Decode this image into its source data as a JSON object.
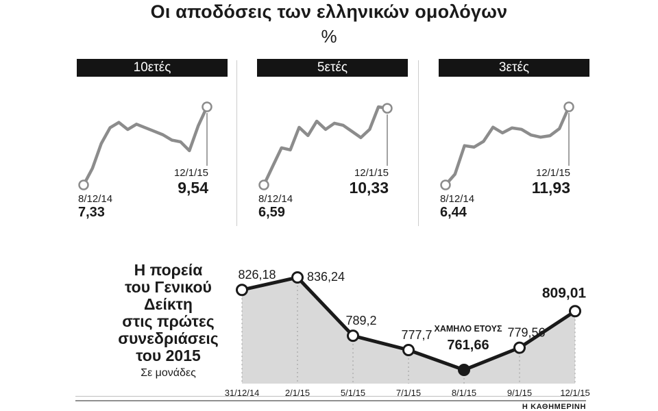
{
  "title": "Οι αποδόσεις των ελληνικών ομολόγων",
  "subtitle": "%",
  "source": "Η ΚΑΘΗΜΕΡΙΝΗ",
  "chart_data": [
    {
      "type": "line",
      "title": "10ετές",
      "start_date": "8/12/14",
      "start_value": 7.33,
      "start_display": "7,33",
      "end_date": "12/1/15",
      "end_value": 9.54,
      "end_display": "9,54",
      "values": [
        7.33,
        7.8,
        8.5,
        8.95,
        9.1,
        8.9,
        9.05,
        8.95,
        8.85,
        8.75,
        8.6,
        8.55,
        8.3,
        9.0,
        9.54
      ]
    },
    {
      "type": "line",
      "title": "5ετές",
      "start_date": "8/12/14",
      "start_value": 6.59,
      "start_display": "6,59",
      "end_date": "12/1/15",
      "end_value": 10.33,
      "end_display": "10,33",
      "values": [
        6.59,
        7.5,
        8.4,
        8.3,
        9.4,
        9.0,
        9.7,
        9.3,
        9.6,
        9.5,
        9.2,
        8.9,
        9.3,
        10.4,
        10.33
      ]
    },
    {
      "type": "line",
      "title": "3ετές",
      "start_date": "8/12/14",
      "start_value": 6.44,
      "start_display": "6,44",
      "end_date": "12/1/15",
      "end_value": 11.93,
      "end_display": "11,93",
      "values": [
        6.44,
        7.2,
        9.2,
        9.1,
        9.5,
        10.5,
        10.1,
        10.45,
        10.35,
        9.95,
        9.8,
        9.9,
        10.4,
        11.93
      ]
    },
    {
      "type": "area",
      "title": "Η πορεία του Γενικού Δείκτη στις πρώτες συνεδριάσεις του 2015",
      "title_lines": "Η πορεία\nτου Γενικού\nΔείκτη\nστις πρώτες\nσυνεδριάσεις\nτου 2015",
      "units": "Σε μονάδες",
      "categories": [
        "31/12/14",
        "2/1/15",
        "5/1/15",
        "7/1/15",
        "8/1/15",
        "9/1/15",
        "12/1/15"
      ],
      "values": [
        826.18,
        836.24,
        789.2,
        777.7,
        761.66,
        779.56,
        809.01
      ],
      "labels_display": [
        "826,18",
        "836,24",
        "789,2",
        "777,7",
        "761,66",
        "779,56",
        "809,01"
      ],
      "annotations": [
        {
          "index": 4,
          "text": "ΧΑΜΗΛΟ ΕΤΟΥΣ"
        }
      ],
      "low_point_index": 4,
      "emphasis_index": 6
    }
  ],
  "colors": {
    "line_dark": "#1a1a1a",
    "line_gray": "#8c8c8c",
    "area_fill": "#d9d9d9",
    "header_bg": "#141414"
  }
}
